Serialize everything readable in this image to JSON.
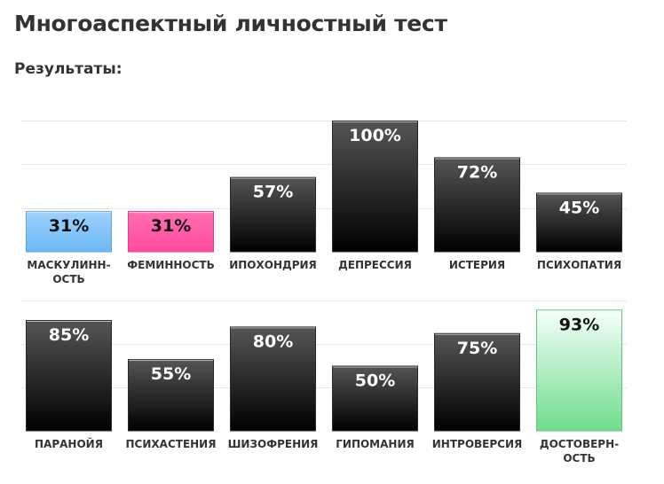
{
  "header": {
    "title": "Многоаспектный личностный тест",
    "subtitle": "Результаты:"
  },
  "colors": {
    "bar_dark_top": "#555555",
    "bar_dark_bottom": "#000000",
    "bar_blue_top": "#a0d2ff",
    "bar_blue_bottom": "#6ab8f5",
    "bar_pink_top": "#ff6fb0",
    "bar_pink_bottom": "#ff4aa0",
    "bar_green_top": "#f4fffb",
    "bar_green_bottom": "#6fdc8c",
    "gridline": "#e6e6e6",
    "value_light": "#ffffff",
    "value_dark": "#111111"
  },
  "chart_data": [
    {
      "type": "bar",
      "title": "",
      "xlabel": "",
      "ylabel": "",
      "ylim": [
        0,
        100
      ],
      "grid": true,
      "categories": [
        "МАСКУЛИНН-ОСТЬ",
        "ФЕМИННОСТЬ",
        "ИПОХОНДРИЯ",
        "ДЕПРЕССИЯ",
        "ИСТЕРИЯ",
        "ПСИХОПАТИЯ"
      ],
      "category_lines": [
        [
          "МАСКУЛИНН-",
          "ОСТЬ"
        ],
        [
          "ФЕМИННОСТЬ"
        ],
        [
          "ИПОХОНДРИЯ"
        ],
        [
          "ДЕПРЕССИЯ"
        ],
        [
          "ИСТЕРИЯ"
        ],
        [
          "ПСИХОПАТИЯ"
        ]
      ],
      "values": [
        31,
        31,
        57,
        100,
        72,
        45
      ],
      "value_labels": [
        "31%",
        "31%",
        "57%",
        "100%",
        "72%",
        "45%"
      ],
      "bar_styles": [
        "blue",
        "pink",
        "dark",
        "dark",
        "dark",
        "dark"
      ]
    },
    {
      "type": "bar",
      "title": "",
      "xlabel": "",
      "ylabel": "",
      "ylim": [
        0,
        100
      ],
      "grid": true,
      "categories": [
        "ПАРАНОЙЯ",
        "ПСИХАСТЕНИЯ",
        "ШИЗОФРЕНИЯ",
        "ГИПОМАНИЯ",
        "ИНТРОВЕРСИЯ",
        "ДОСТОВЕРН-ОСТЬ"
      ],
      "category_lines": [
        [
          "ПАРАНОЙЯ"
        ],
        [
          "ПСИХАСТЕНИЯ"
        ],
        [
          "ШИЗОФРЕНИЯ"
        ],
        [
          "ГИПОМАНИЯ"
        ],
        [
          "ИНТРОВЕРСИЯ"
        ],
        [
          "ДОСТОВЕРН-",
          "ОСТЬ"
        ]
      ],
      "values": [
        85,
        55,
        80,
        50,
        75,
        93
      ],
      "value_labels": [
        "85%",
        "55%",
        "80%",
        "50%",
        "75%",
        "93%"
      ],
      "bar_styles": [
        "dark",
        "dark",
        "dark",
        "dark",
        "dark",
        "green"
      ]
    }
  ]
}
